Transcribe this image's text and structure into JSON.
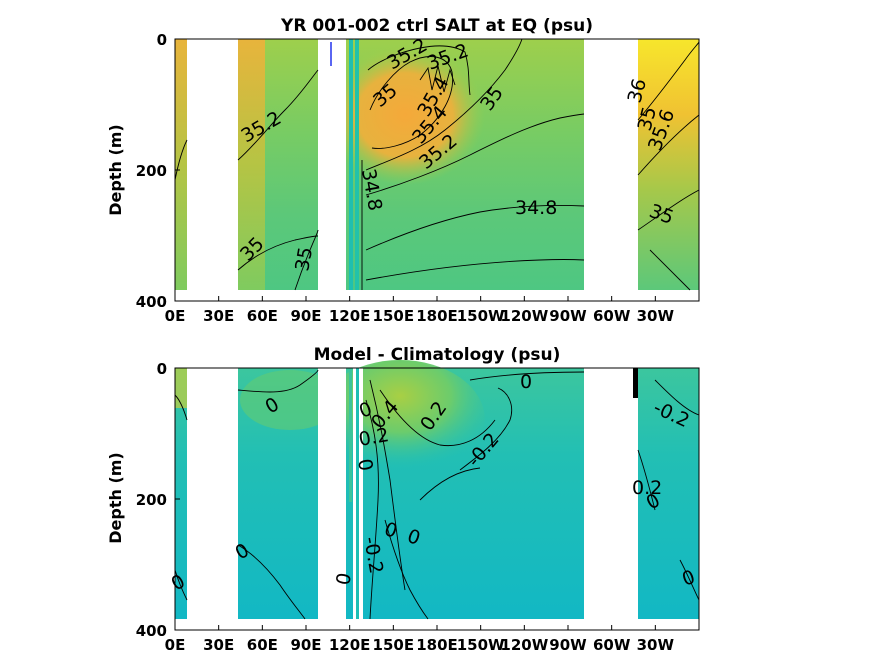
{
  "chart_data": [
    {
      "type": "heatmap",
      "title": "YR 001-002 ctrl SALT at EQ (psu)",
      "ylabel": "Depth (m)",
      "xlabel": "",
      "xticks": [
        "0E",
        "30E",
        "60E",
        "90E",
        "120E",
        "150E",
        "180E",
        "150W",
        "120W",
        "90W",
        "60W",
        "30W"
      ],
      "yticks": [
        "0",
        "200",
        "400"
      ],
      "ylim": [
        0,
        400
      ],
      "xlim": [
        0,
        360
      ],
      "colors": {
        "low": "#2fc0a4",
        "mid": "#5fcf72",
        "high": "#f0a838",
        "max": "#f8e82a"
      },
      "contour_labels": [
        "35.2",
        "35",
        "35.4",
        "35",
        "35.2",
        "35.4",
        "35.2",
        "35.2",
        "35",
        "35",
        "34.8",
        "34.8",
        "35",
        "36",
        "35.6",
        "35"
      ],
      "annotations": {
        "blue_mark": "blue tick near 120E at surface"
      }
    },
    {
      "type": "heatmap",
      "title": "Model - Climatology (psu)",
      "ylabel": "Depth (m)",
      "xlabel": "",
      "xticks": [
        "0E",
        "30E",
        "60E",
        "90E",
        "120E",
        "150E",
        "180E",
        "150W",
        "120W",
        "90W",
        "60W",
        "30W"
      ],
      "yticks": [
        "0",
        "200",
        "400"
      ],
      "ylim": [
        0,
        400
      ],
      "xlim": [
        0,
        360
      ],
      "colors": {
        "low": "#0fb4c8",
        "mid": "#3cc8a0",
        "high": "#b0cf40"
      },
      "contour_labels": [
        "0",
        "0",
        "0.4",
        "0.2",
        "0",
        "0.2",
        "0",
        "-0.2",
        "-0.2",
        "0",
        "0",
        "0",
        "-0.2",
        "0.2",
        "0",
        "0",
        "0",
        "0"
      ]
    }
  ]
}
